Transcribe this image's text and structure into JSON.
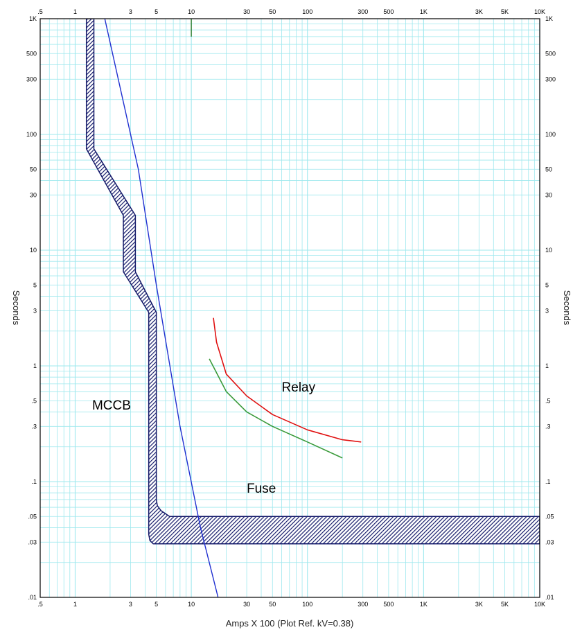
{
  "chart_data": {
    "type": "line",
    "title": "",
    "xlabel": "Amps  X  100 (Plot Ref. kV=0.38)",
    "ylabel": "Seconds",
    "x_scale": "log",
    "y_scale": "log",
    "xlim": [
      0.5,
      10000
    ],
    "ylim": [
      0.01,
      1000
    ],
    "grid": true,
    "colors": {
      "grid": "#9ee8ee",
      "axes": "#000000",
      "fuse": "#1f2fd0",
      "relay": "#e01010",
      "relay_lower": "#3a9a3a",
      "mccb": "#141a6a",
      "marker": "#2a7a2a"
    },
    "x_ticks": [
      {
        "v": 0.5,
        "label": ".5"
      },
      {
        "v": 1,
        "label": "1"
      },
      {
        "v": 3,
        "label": "3"
      },
      {
        "v": 5,
        "label": "5"
      },
      {
        "v": 10,
        "label": "10"
      },
      {
        "v": 30,
        "label": "30"
      },
      {
        "v": 50,
        "label": "50"
      },
      {
        "v": 100,
        "label": "100"
      },
      {
        "v": 300,
        "label": "300"
      },
      {
        "v": 500,
        "label": "500"
      },
      {
        "v": 1000,
        "label": "1K"
      },
      {
        "v": 3000,
        "label": "3K"
      },
      {
        "v": 5000,
        "label": "5K"
      },
      {
        "v": 10000,
        "label": "10K"
      }
    ],
    "y_ticks": [
      {
        "v": 0.01,
        "label": ".01"
      },
      {
        "v": 0.03,
        "label": ".03"
      },
      {
        "v": 0.05,
        "label": ".05"
      },
      {
        "v": 0.1,
        "label": ".1"
      },
      {
        "v": 0.3,
        "label": ".3"
      },
      {
        "v": 0.5,
        "label": ".5"
      },
      {
        "v": 1,
        "label": "1"
      },
      {
        "v": 3,
        "label": "3"
      },
      {
        "v": 5,
        "label": "5"
      },
      {
        "v": 10,
        "label": "10"
      },
      {
        "v": 30,
        "label": "30"
      },
      {
        "v": 50,
        "label": "50"
      },
      {
        "v": 100,
        "label": "100"
      },
      {
        "v": 300,
        "label": "300"
      },
      {
        "v": 500,
        "label": "500"
      },
      {
        "v": 1000,
        "label": "1K"
      }
    ],
    "series": [
      {
        "key": "fuse",
        "x": [
          1.8,
          3.5,
          5.0,
          8.0,
          12.0,
          17.0
        ],
        "y": [
          1000,
          50,
          5,
          0.3,
          0.04,
          0.01
        ]
      },
      {
        "key": "relay",
        "x": [
          15.5,
          16.5,
          20,
          30,
          50,
          100,
          200,
          290
        ],
        "y": [
          2.6,
          1.6,
          0.85,
          0.55,
          0.38,
          0.28,
          0.23,
          0.22
        ]
      },
      {
        "key": "relay_lower",
        "x": [
          14.3,
          20,
          30,
          50,
          100,
          200
        ],
        "y": [
          1.15,
          0.6,
          0.4,
          0.3,
          0.22,
          0.16
        ]
      }
    ],
    "bands": [
      {
        "key": "mccb",
        "left": {
          "x": [
            1.25,
            1.25,
            2.6,
            2.6,
            4.3,
            4.3,
            4.3,
            4.4,
            4.7,
            10000
          ],
          "y": [
            1000,
            75,
            20,
            6.5,
            2.9,
            0.04,
            0.035,
            0.031,
            0.029,
            0.029
          ]
        },
        "right": {
          "x": [
            1.45,
            1.45,
            3.3,
            3.3,
            5.0,
            5.0,
            5.1,
            5.5,
            6.5,
            10000
          ],
          "y": [
            1000,
            75,
            20,
            6.5,
            2.9,
            0.07,
            0.062,
            0.056,
            0.05,
            0.05
          ]
        }
      }
    ],
    "marker": {
      "x": 10,
      "y_from": 1000,
      "y_to": 700
    },
    "annotations": [
      {
        "key": "mccb",
        "text": "MCCB",
        "x": 1.4,
        "y": 0.42
      },
      {
        "key": "relay",
        "text": "Relay",
        "x": 60,
        "y": 0.6
      },
      {
        "key": "fuse",
        "text": "Fuse",
        "x": 30,
        "y": 0.08
      }
    ]
  }
}
